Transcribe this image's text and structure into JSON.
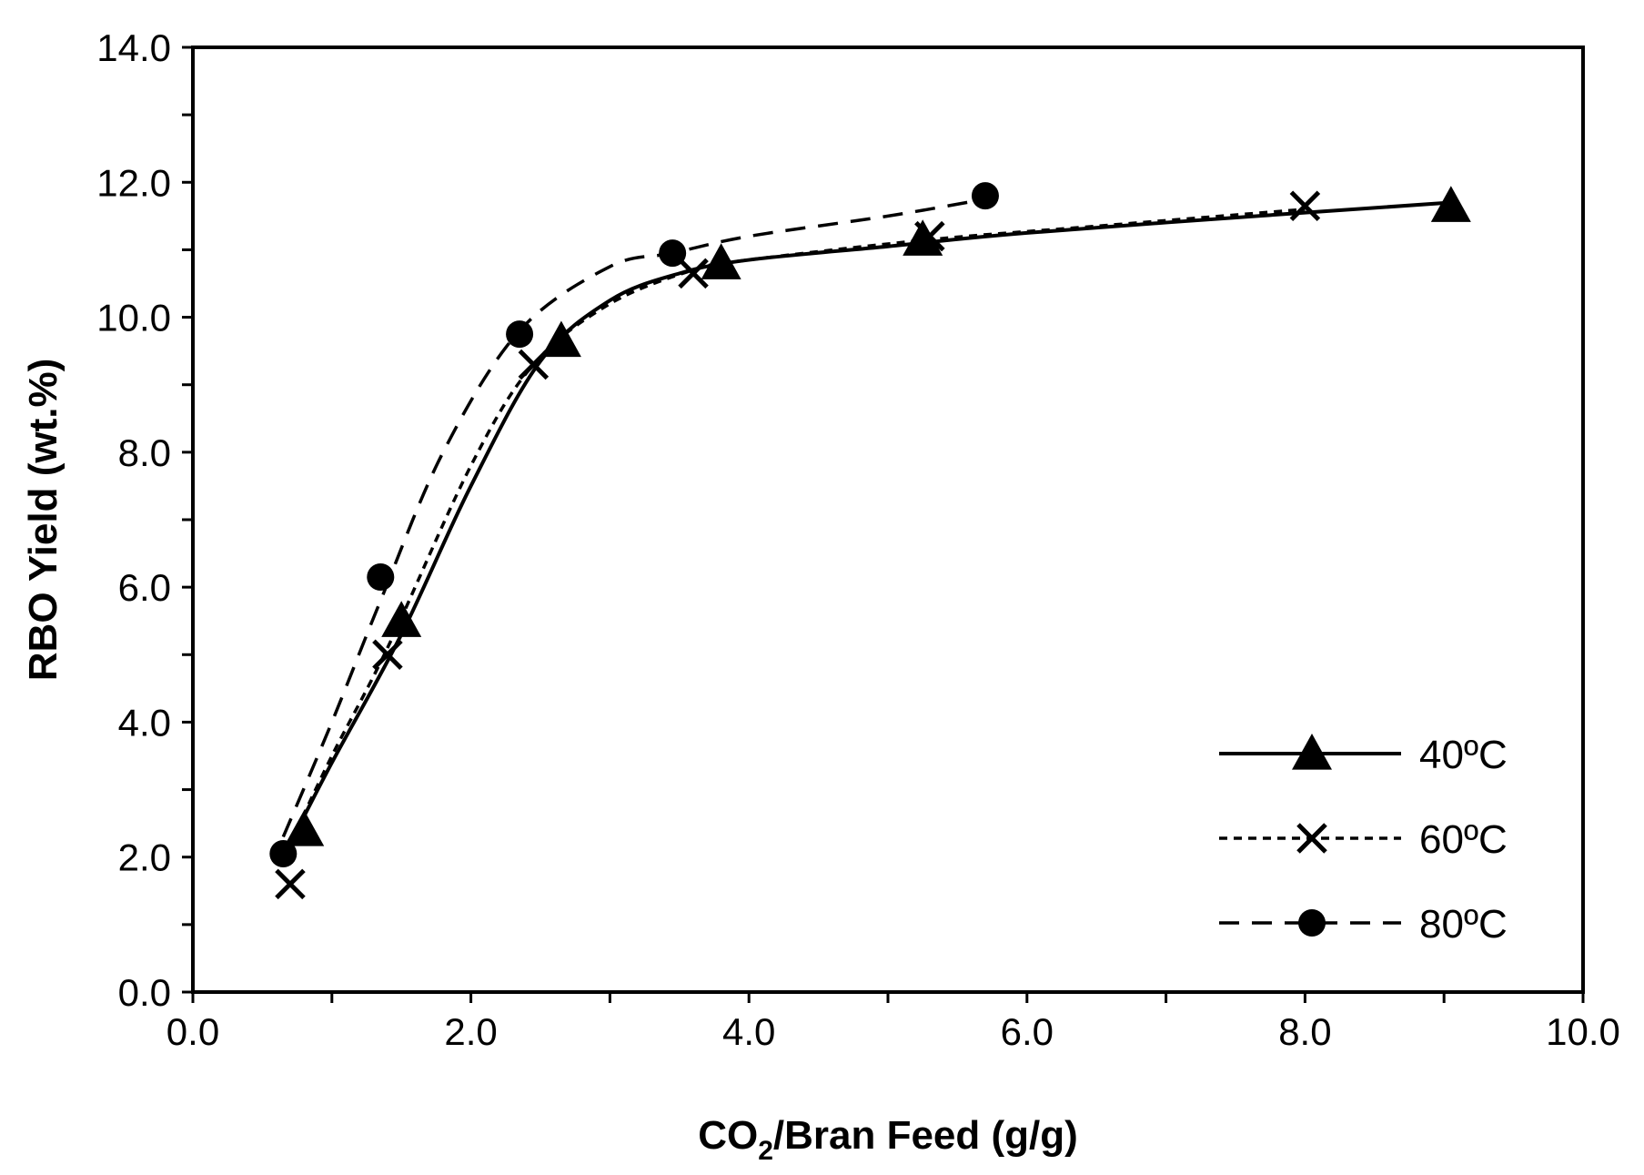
{
  "chart_data": {
    "type": "scatter",
    "title": "",
    "xlabel": {
      "main": "CO",
      "sub": "2",
      "rest": "/Bran Feed (g/g)"
    },
    "ylabel": "RBO Yield (wt.%)",
    "xlim": [
      0,
      10
    ],
    "ylim": [
      0,
      14
    ],
    "x_ticks": [
      "0.0",
      "2.0",
      "4.0",
      "6.0",
      "8.0",
      "10.0"
    ],
    "y_ticks": [
      "0.0",
      "2.0",
      "4.0",
      "6.0",
      "8.0",
      "10.0",
      "12.0",
      "14.0"
    ],
    "grid": false,
    "legend_position": "bottom-right",
    "series": [
      {
        "name": "40ºC",
        "marker": "triangle",
        "line": "solid",
        "x": [
          0.8,
          1.5,
          2.65,
          3.8,
          5.25,
          9.05
        ],
        "y": [
          2.4,
          5.5,
          9.65,
          10.8,
          11.15,
          11.65
        ],
        "curve_x": [
          0.7,
          1.0,
          1.5,
          2.0,
          2.5,
          3.0,
          3.5,
          4.0,
          5.0,
          6.0,
          8.0,
          9.05
        ],
        "curve_y": [
          2.2,
          3.4,
          5.3,
          7.5,
          9.35,
          10.25,
          10.65,
          10.85,
          11.05,
          11.25,
          11.55,
          11.7
        ]
      },
      {
        "name": "60ºC",
        "marker": "x",
        "line": "dashed-short",
        "x": [
          0.7,
          1.4,
          2.45,
          3.6,
          5.3,
          8.0
        ],
        "y": [
          1.6,
          5.0,
          9.3,
          10.65,
          11.2,
          11.65
        ],
        "curve_x": [
          0.7,
          1.0,
          1.4,
          2.0,
          2.45,
          3.0,
          3.6,
          4.0,
          5.3,
          6.5,
          8.0
        ],
        "curve_y": [
          2.2,
          3.5,
          5.1,
          7.8,
          9.3,
          10.2,
          10.7,
          10.85,
          11.15,
          11.35,
          11.6
        ]
      },
      {
        "name": "80ºC",
        "marker": "circle",
        "line": "dashed-long",
        "x": [
          0.65,
          1.35,
          2.35,
          3.45,
          5.7
        ],
        "y": [
          2.05,
          6.15,
          9.75,
          10.95,
          11.8
        ],
        "curve_x": [
          0.65,
          1.0,
          1.35,
          1.8,
          2.35,
          3.0,
          3.45,
          4.0,
          5.0,
          5.7
        ],
        "curve_y": [
          2.3,
          4.0,
          5.8,
          8.0,
          9.8,
          10.75,
          10.95,
          11.2,
          11.5,
          11.75
        ]
      }
    ]
  }
}
